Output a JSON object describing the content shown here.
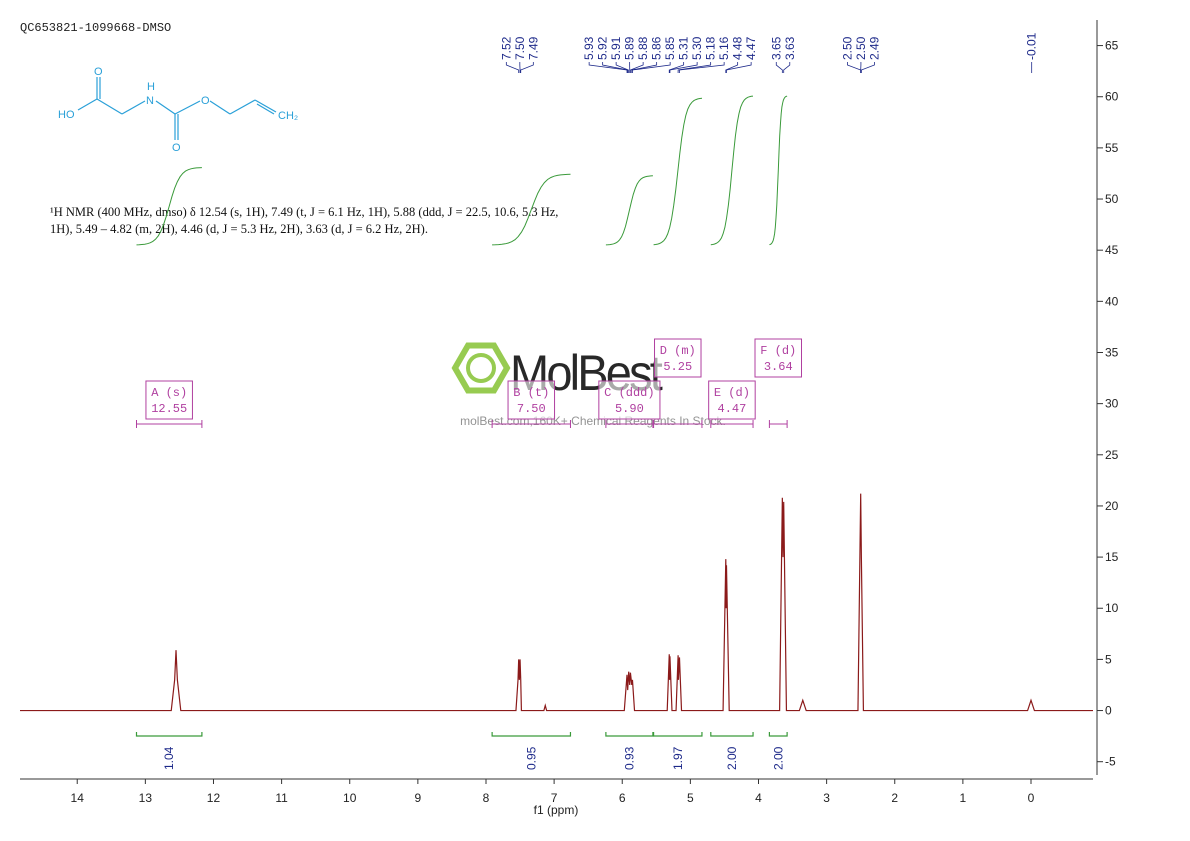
{
  "header": "QC653821-1099668-DMSO",
  "description": [
    "¹H NMR (400 MHz, dmso) δ 12.54 (s, 1H), 7.49 (t, J = 6.1 Hz, 1H), 5.88 (ddd, J = 22.5, 10.6, 5.3 Hz,",
    "1H), 5.49 – 4.82 (m, 2H), 4.46 (d, J = 5.3 Hz, 2H), 3.63 (d, J = 6.2 Hz, 2H)."
  ],
  "structure": {
    "atoms": [
      "O",
      "HO",
      "H",
      "N",
      "O",
      "O",
      "CH₂"
    ]
  },
  "watermark": {
    "brand": "MolBest",
    "tagline": "molBest.com,160K+ Chemical Reagents In Stock."
  },
  "chart_data": {
    "type": "line",
    "x_label": "f1 (ppm)",
    "color": "#8b1a1a",
    "x": [
      14.84,
      13.0,
      12.62,
      12.57,
      12.55,
      12.53,
      12.48,
      10,
      8,
      7.56,
      7.53,
      7.52,
      7.51,
      7.5,
      7.49,
      7.48,
      7.45,
      7.15,
      7.13,
      7.11,
      6.2,
      5.97,
      5.93,
      5.92,
      5.905,
      5.89,
      5.88,
      5.86,
      5.85,
      5.82,
      5.34,
      5.31,
      5.305,
      5.3,
      5.27,
      5.21,
      5.18,
      5.175,
      5.16,
      5.13,
      4.52,
      4.48,
      4.475,
      4.47,
      4.43,
      3.69,
      3.65,
      3.64,
      3.63,
      3.59,
      3.4,
      3.35,
      3.3,
      2.54,
      2.5,
      2.49,
      2.46,
      0.05,
      0.0,
      -0.05,
      -0.91
    ],
    "values": [
      0,
      0,
      0,
      3,
      5.9,
      3,
      0,
      0,
      0,
      0,
      3,
      5,
      3,
      5,
      3,
      0,
      0,
      0,
      0.5,
      0,
      0,
      0,
      3.5,
      2,
      3.8,
      2.5,
      3.7,
      2.5,
      3,
      0,
      0,
      5.5,
      3,
      5.3,
      0,
      0,
      5.4,
      3,
      5.2,
      0,
      0,
      14.8,
      10,
      14.2,
      0,
      0,
      20.8,
      15,
      20.4,
      0,
      0,
      1,
      0,
      0,
      21.2,
      15,
      0,
      0,
      1,
      0,
      0
    ],
    "xlim": [
      14.84,
      -0.91
    ],
    "ylim": [
      -6.3,
      67.5
    ],
    "xticks": [
      14,
      13,
      12,
      11,
      10,
      9,
      8,
      7,
      6,
      5,
      4,
      3,
      2,
      1,
      0
    ],
    "yticks": [
      -5,
      0,
      5,
      10,
      15,
      20,
      25,
      30,
      35,
      40,
      45,
      50,
      55,
      60,
      65
    ],
    "peak_labels": [
      7.52,
      {
        "value": 7.5,
        "label": "7.50"
      },
      7.49,
      5.93,
      5.92,
      5.91,
      5.89,
      5.88,
      5.86,
      5.85,
      5.31,
      {
        "value": 5.3,
        "label": "5.30"
      },
      5.18,
      5.16,
      4.48,
      4.47,
      3.65,
      3.63,
      {
        "value": 2.5,
        "label": "2.50"
      },
      {
        "value": 2.5,
        "label": "2.50"
      },
      2.49,
      -0.01
    ],
    "integrals": {
      "ranges": [
        [
          13.13,
          12.17
        ],
        [
          7.91,
          6.76
        ],
        [
          6.24,
          5.55
        ],
        [
          5.54,
          4.83
        ],
        [
          4.7,
          4.08
        ],
        [
          3.84,
          3.58
        ]
      ],
      "values": [
        1.04,
        0.95,
        0.93,
        1.97,
        2.0,
        2.0
      ],
      "value_labels": [
        "1.04",
        "0.95",
        "0.93",
        "1.97",
        "2.00",
        "2.00"
      ],
      "color": "#3a9a3a"
    },
    "multiplets": [
      {
        "name": "A (s)",
        "shift": 12.55
      },
      {
        "name": "B (t)",
        "shift": {
          "value": 7.5,
          "label": "7.50"
        }
      },
      {
        "name": "C (ddd)",
        "shift": {
          "value": 5.9,
          "label": "5.90"
        }
      },
      {
        "name": "D (m)",
        "shift": 5.25
      },
      {
        "name": "E (d)",
        "shift": 4.47
      },
      {
        "name": "F (d)",
        "shift": 3.64
      }
    ]
  }
}
